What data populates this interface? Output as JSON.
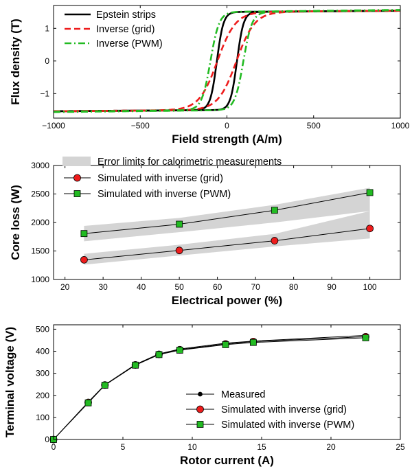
{
  "chart_data": [
    {
      "type": "line",
      "xlabel": "Field strength (A/m)",
      "ylabel": "Flux density (T)",
      "xlim": [
        -1000,
        1000
      ],
      "ylim": [
        -1.75,
        1.7
      ],
      "xticks": [
        -1000,
        -500,
        0,
        500,
        1000
      ],
      "yticks": [
        -1,
        0,
        1
      ],
      "xticklabels": [
        "−1000",
        "−500",
        "0",
        "500",
        "1000"
      ],
      "yticklabels": [
        "−1",
        "0",
        "1"
      ],
      "grid": false,
      "legend_position": "top-left",
      "series": [
        {
          "name": "Epstein strips",
          "color": "#000000",
          "style": "solid",
          "params": {
            "Hc": 58,
            "H0": 38,
            "Bs": 1.5,
            "slope": 4e-05
          },
          "x": [
            -1000,
            -800,
            -600,
            -400,
            -200,
            -100,
            -58,
            0,
            58,
            100,
            200,
            400,
            600,
            800,
            1000
          ]
        },
        {
          "name": "Inverse (grid)",
          "color": "#ee1c1c",
          "style": "dashed",
          "params": {
            "Hc": 55,
            "H0": 105,
            "Bs": 1.5,
            "slope": 4e-05
          },
          "x": [
            -1000,
            -800,
            -600,
            -400,
            -200,
            -100,
            -55,
            0,
            55,
            100,
            200,
            400,
            600,
            800,
            1000
          ]
        },
        {
          "name": "Inverse (PWM)",
          "color": "#22bb22",
          "style": "dashdot",
          "params": {
            "Hc": 95,
            "H0": 50,
            "Bs": 1.5,
            "slope": 6e-05
          },
          "x": [
            -1000,
            -800,
            -600,
            -400,
            -200,
            -100,
            -95,
            0,
            95,
            100,
            200,
            400,
            600,
            800,
            1000
          ]
        }
      ]
    },
    {
      "type": "line",
      "xlabel": "Electrical power (%)",
      "ylabel": "Core loss (W)",
      "xlim": [
        17,
        108
      ],
      "ylim": [
        1000,
        3000
      ],
      "xticks": [
        20,
        30,
        40,
        50,
        60,
        70,
        80,
        90,
        100
      ],
      "yticks": [
        1000,
        1500,
        2000,
        2500,
        3000
      ],
      "xticklabels": [
        "20",
        "30",
        "40",
        "50",
        "60",
        "70",
        "80",
        "90",
        "100"
      ],
      "yticklabels": [
        "1000",
        "1500",
        "2000",
        "2500",
        "3000"
      ],
      "grid": false,
      "legend_position": "top",
      "band_label": "Error limits for calorimetric measurements",
      "bands": [
        {
          "x": [
            25,
            50,
            75,
            100
          ],
          "lower": [
            1260,
            1420,
            1580,
            1720
          ],
          "upper": [
            1450,
            1610,
            1800,
            2200
          ]
        },
        {
          "x": [
            25,
            50,
            75,
            100
          ],
          "lower": [
            1670,
            1830,
            2000,
            2200
          ],
          "upper": [
            1940,
            2080,
            2310,
            2610
          ]
        }
      ],
      "series": [
        {
          "name": "Simulated with inverse (grid)",
          "color": "#ee1c1c",
          "marker": "circle",
          "x": [
            25,
            50,
            75,
            100
          ],
          "values": [
            1345,
            1510,
            1680,
            1895
          ]
        },
        {
          "name": "Simulated with inverse (PWM)",
          "color": "#22bb22",
          "marker": "square",
          "x": [
            25,
            50,
            75,
            100
          ],
          "values": [
            1805,
            1970,
            2215,
            2525
          ]
        }
      ]
    },
    {
      "type": "line",
      "xlabel": "Rotor current (A)",
      "ylabel": "Terminal voltage (V)",
      "xlim": [
        0,
        25
      ],
      "ylim": [
        0,
        520
      ],
      "xticks": [
        0,
        5,
        10,
        15,
        20,
        25
      ],
      "yticks": [
        0,
        100,
        200,
        300,
        400,
        500
      ],
      "xticklabels": [
        "0",
        "5",
        "10",
        "15",
        "20",
        "25"
      ],
      "yticklabels": [
        "0",
        "100",
        "200",
        "300",
        "400",
        "500"
      ],
      "grid": false,
      "legend_position": "bottom-right",
      "series": [
        {
          "name": "Measured",
          "color": "#000000",
          "marker": "dot",
          "x": [
            0,
            2.5,
            3.7,
            5.9,
            7.6,
            9.1,
            12.4,
            14.4,
            22.5
          ],
          "values": [
            0,
            170,
            248,
            340,
            388,
            410,
            437,
            446,
            472
          ]
        },
        {
          "name": "Simulated with inverse (grid)",
          "color": "#ee1c1c",
          "marker": "circle",
          "x": [
            0,
            2.5,
            3.7,
            5.9,
            7.6,
            9.1,
            12.4,
            14.4,
            22.5
          ],
          "values": [
            0,
            168,
            247,
            338,
            386,
            407,
            433,
            444,
            466
          ]
        },
        {
          "name": "Simulated with inverse (PWM)",
          "color": "#22bb22",
          "marker": "square",
          "x": [
            0,
            2.5,
            3.7,
            5.9,
            7.6,
            9.1,
            12.4,
            14.4,
            22.5
          ],
          "values": [
            0,
            166,
            246,
            337,
            385,
            405,
            430,
            440,
            461
          ]
        }
      ]
    }
  ]
}
